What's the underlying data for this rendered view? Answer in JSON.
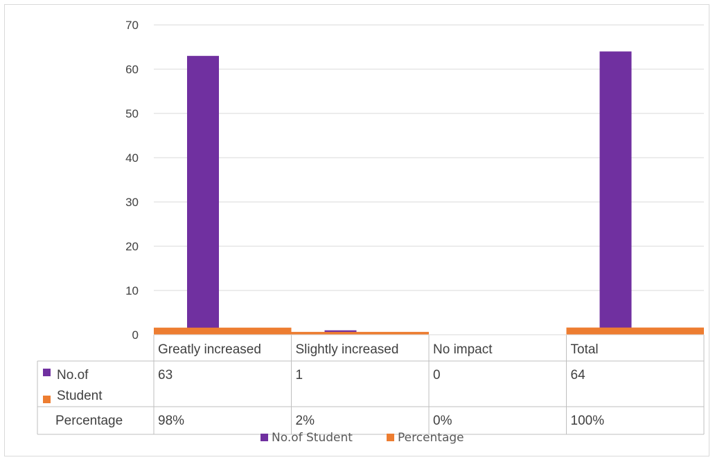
{
  "chart_data": {
    "type": "bar",
    "categories": [
      "Greatly increased",
      "Slightly increased",
      "No impact",
      "Total"
    ],
    "series": [
      {
        "name": "No.of Student",
        "values": [
          63,
          1,
          0,
          64
        ],
        "labels": [
          "63",
          "1",
          "0",
          "64"
        ],
        "color": "#7030a0"
      },
      {
        "name": "Percentage",
        "values": [
          0.98,
          0.02,
          0,
          1.0
        ],
        "labels": [
          "98%",
          "2%",
          "0%",
          "100%"
        ],
        "color": "#ed7d31"
      }
    ],
    "ylim": [
      0,
      70
    ],
    "yticks": [
      0,
      10,
      20,
      30,
      40,
      50,
      60,
      70
    ],
    "grid": true,
    "data_table": true,
    "legend_position": "bottom",
    "title": "",
    "xlabel": "",
    "ylabel": ""
  }
}
